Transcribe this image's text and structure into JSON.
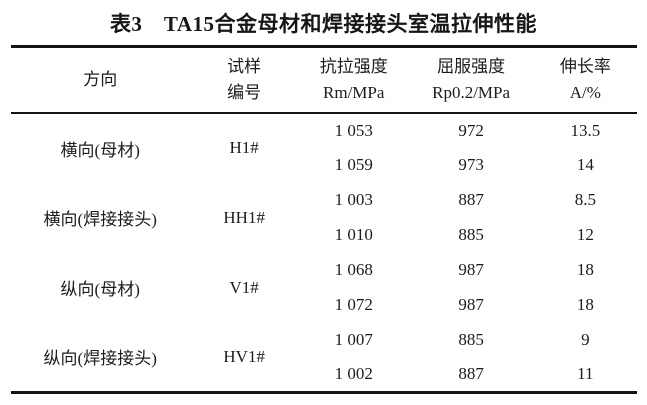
{
  "title": "表3　TA15合金母材和焊接接头室温拉伸性能",
  "table": {
    "columns": [
      {
        "line1": "方向",
        "line2": ""
      },
      {
        "line1": "试样",
        "line2": "编号"
      },
      {
        "line1": "抗拉强度",
        "line2": "Rm/MPa"
      },
      {
        "line1": "屈服强度",
        "line2": "Rp0.2/MPa"
      },
      {
        "line1": "伸长率",
        "line2": "A/%"
      }
    ],
    "groups": [
      {
        "direction": "横向(母材)",
        "specimen": "H1#",
        "rows": [
          {
            "rm": "1 053",
            "rp": "972",
            "a": "13.5"
          },
          {
            "rm": "1 059",
            "rp": "973",
            "a": "14"
          }
        ]
      },
      {
        "direction": "横向(焊接接头)",
        "specimen": "HH1#",
        "rows": [
          {
            "rm": "1 003",
            "rp": "887",
            "a": "8.5"
          },
          {
            "rm": "1 010",
            "rp": "885",
            "a": "12"
          }
        ]
      },
      {
        "direction": "纵向(母材)",
        "specimen": "V1#",
        "rows": [
          {
            "rm": "1 068",
            "rp": "987",
            "a": "18"
          },
          {
            "rm": "1 072",
            "rp": "987",
            "a": "18"
          }
        ]
      },
      {
        "direction": "纵向(焊接接头)",
        "specimen": "HV1#",
        "rows": [
          {
            "rm": "1 007",
            "rp": "885",
            "a": "9"
          },
          {
            "rm": "1 002",
            "rp": "887",
            "a": "11"
          }
        ]
      }
    ]
  }
}
